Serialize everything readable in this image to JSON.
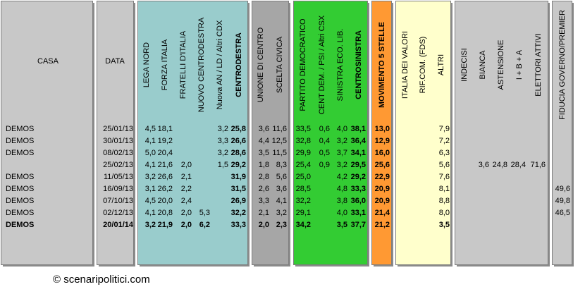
{
  "table": {
    "columns": [
      "CASA",
      "DATA",
      "LEGA NORD",
      "FORZA ITALIA",
      "FRATELLI D'ITALIA",
      "NUOVO  CENTRODESTRA",
      "Nuova AN / LD / Altri CDX",
      "CENTRODESTRA",
      "UNIONE DI CENTRO",
      "SCELTA CIVICA",
      "PARTITO DEMOCRATICO",
      "CENT DEM. / PSI / Altri CSX",
      "SINISTRA ECO. LIB.",
      "CENTROSINISTRA",
      "MOVIMENTO 5 STELLE",
      "ITALIA DEI VALORI",
      "RIF.COM. (FDS)",
      "ALTRI",
      "INDECISI",
      "BIANCA",
      "ASTENSIONE",
      "I + B + A",
      "ELETTORI ATTIVI",
      "FIDUCIA GOVERNO/PREMIER"
    ],
    "rows": [
      [
        "DEMOS",
        "25/01/13",
        "4,5",
        "18,1",
        null,
        null,
        "3,2",
        "25,8",
        "3,6",
        "11,6",
        "33,5",
        "0,6",
        "4,0",
        "38,1",
        "13,0",
        null,
        null,
        "7,9",
        null,
        null,
        null,
        null,
        null,
        null
      ],
      [
        "DEMOS",
        "30/01/13",
        "4,1",
        "19,2",
        null,
        null,
        "3,3",
        "26,6",
        "4,4",
        "12,5",
        "32,8",
        "0,4",
        "3,2",
        "36,4",
        "12,9",
        null,
        null,
        "7,2",
        null,
        null,
        null,
        null,
        null,
        null
      ],
      [
        "DEMOS",
        "08/02/13",
        "5,0",
        "20,4",
        null,
        null,
        "3,2",
        "28,6",
        "3,5",
        "11,5",
        "29,9",
        "0,5",
        "3,7",
        "34,1",
        "16,0",
        null,
        null,
        "6,3",
        null,
        null,
        null,
        null,
        null,
        null
      ],
      [
        null,
        "25/02/13",
        "4,1",
        "21,6",
        "2,0",
        null,
        "1,5",
        "29,2",
        "1,8",
        "8,3",
        "25,4",
        "0,9",
        "3,2",
        "29,5",
        "25,6",
        null,
        null,
        "5,6",
        null,
        "3,6",
        "24,8",
        "28,4",
        "71,6",
        null
      ],
      [
        "DEMOS",
        "11/05/13",
        "3,2",
        "26,6",
        "2,1",
        null,
        null,
        "31,9",
        "2,8",
        "5,6",
        "25,0",
        null,
        "4,2",
        "29,2",
        "22,9",
        null,
        null,
        "7,6",
        null,
        null,
        null,
        null,
        null,
        null
      ],
      [
        "DEMOS",
        "16/09/13",
        "3,1",
        "26,2",
        "2,2",
        null,
        null,
        "31,5",
        "2,6",
        "3,6",
        "28,5",
        null,
        "4,8",
        "33,3",
        "20,9",
        null,
        null,
        "8,1",
        null,
        null,
        null,
        null,
        null,
        "49,6"
      ],
      [
        "DEMOS",
        "07/10/13",
        "4,5",
        "20,0",
        "2,4",
        null,
        null,
        "26,9",
        "3,3",
        "4,1",
        "32,2",
        null,
        "3,8",
        "36,0",
        "20,9",
        null,
        null,
        "8,8",
        null,
        null,
        null,
        null,
        null,
        "49,8"
      ],
      [
        "DEMOS",
        "02/12/13",
        "4,1",
        "20,8",
        "2,0",
        "5,3",
        null,
        "32,2",
        "2,1",
        "3,2",
        "29,1",
        null,
        "4,0",
        "33,1",
        "21,4",
        null,
        null,
        "8,0",
        null,
        null,
        null,
        null,
        null,
        "46,5"
      ],
      [
        "DEMOS",
        "20/01/14",
        "3,2",
        "21,9",
        "2,0",
        "6,2",
        null,
        "33,3",
        "2,0",
        "2,3",
        "34,2",
        null,
        "3,5",
        "37,7",
        "21,2",
        null,
        null,
        "3,5",
        null,
        null,
        null,
        null,
        null,
        null
      ]
    ],
    "footer": "© scenaripolitici.com"
  }
}
